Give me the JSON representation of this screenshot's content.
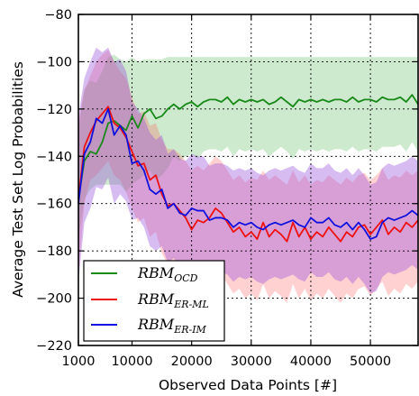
{
  "chart_data": {
    "type": "line",
    "title": "",
    "xlabel": "Observed Data Points [#]",
    "ylabel": "Average Test Set Log Probabilities",
    "xlim": [
      1000,
      58000
    ],
    "ylim": [
      -220,
      -80
    ],
    "xticks": [
      1000,
      10000,
      20000,
      30000,
      40000,
      50000
    ],
    "yticks": [
      -80,
      -100,
      -120,
      -140,
      -160,
      -180,
      -200,
      -220
    ],
    "grid": true,
    "legend_position": "lower-left",
    "x": [
      1000,
      2000,
      3000,
      4000,
      5000,
      6000,
      7000,
      8000,
      9000,
      10000,
      11000,
      12000,
      13000,
      14000,
      15000,
      16000,
      17000,
      18000,
      19000,
      20000,
      21000,
      22000,
      23000,
      24000,
      25000,
      26000,
      27000,
      28000,
      29000,
      30000,
      31000,
      32000,
      33000,
      34000,
      35000,
      36000,
      37000,
      38000,
      39000,
      40000,
      41000,
      42000,
      43000,
      44000,
      45000,
      46000,
      47000,
      48000,
      49000,
      50000,
      51000,
      52000,
      53000,
      54000,
      55000,
      56000,
      57000,
      58000
    ],
    "series": [
      {
        "name": "OCD",
        "color": "#1a8a1a",
        "band_color": "rgba(60,170,60,0.25)",
        "values": [
          -158,
          -142,
          -138,
          -139,
          -134,
          -126,
          -125,
          -127,
          -129,
          -123,
          -128,
          -122,
          -120,
          -124,
          -123,
          -120,
          -118,
          -120,
          -118,
          -117,
          -119,
          -117,
          -116,
          -116,
          -117,
          -115,
          -118,
          -116,
          -117,
          -116,
          -117,
          -116,
          -118,
          -117,
          -115,
          -117,
          -119,
          -116,
          -117,
          -116,
          -117,
          -116,
          -117,
          -116,
          -116,
          -117,
          -115,
          -117,
          -116,
          -116,
          -117,
          -115,
          -116,
          -116,
          -115,
          -117,
          -114,
          -118
        ],
        "upper": [
          -128,
          -112,
          -108,
          -109,
          -104,
          -98,
          -97,
          -99,
          -100,
          -98,
          -100,
          -99,
          -99,
          -99,
          -99,
          -98,
          -98,
          -98,
          -98,
          -98,
          -98,
          -98,
          -98,
          -98,
          -98,
          -98,
          -98,
          -98,
          -98,
          -98,
          -98,
          -98,
          -98,
          -98,
          -98,
          -98,
          -98,
          -98,
          -98,
          -98,
          -98,
          -98,
          -98,
          -98,
          -98,
          -98,
          -98,
          -98,
          -98,
          -98,
          -98,
          -98,
          -98,
          -98,
          -98,
          -98,
          -98,
          -98
        ],
        "lower": [
          -175,
          -158,
          -154,
          -152,
          -152,
          -152,
          -152,
          -152,
          -155,
          -152,
          -150,
          -148,
          -146,
          -150,
          -148,
          -145,
          -140,
          -142,
          -140,
          -139,
          -141,
          -138,
          -137,
          -137,
          -138,
          -136,
          -140,
          -137,
          -138,
          -137,
          -138,
          -137,
          -140,
          -138,
          -136,
          -138,
          -141,
          -137,
          -138,
          -137,
          -138,
          -137,
          -138,
          -137,
          -137,
          -138,
          -136,
          -138,
          -137,
          -137,
          -138,
          -136,
          -136,
          -136,
          -135,
          -138,
          -134,
          -138
        ]
      },
      {
        "name": "ER-ML",
        "color": "#ee1111",
        "band_color": "rgba(255,90,90,0.28)",
        "values": [
          -158,
          -136,
          -130,
          -125,
          -122,
          -119,
          -126,
          -128,
          -132,
          -138,
          -144,
          -143,
          -150,
          -148,
          -156,
          -161,
          -160,
          -163,
          -166,
          -171,
          -167,
          -168,
          -166,
          -162,
          -164,
          -168,
          -172,
          -170,
          -174,
          -172,
          -175,
          -168,
          -174,
          -171,
          -173,
          -176,
          -168,
          -174,
          -170,
          -175,
          -172,
          -174,
          -170,
          -173,
          -176,
          -172,
          -174,
          -170,
          -169,
          -173,
          -170,
          -167,
          -173,
          -170,
          -172,
          -168,
          -170,
          -167
        ],
        "upper": [
          -125,
          -112,
          -106,
          -100,
          -97,
          -95,
          -100,
          -104,
          -107,
          -115,
          -122,
          -121,
          -127,
          -126,
          -133,
          -137,
          -137,
          -139,
          -142,
          -146,
          -144,
          -146,
          -143,
          -140,
          -142,
          -146,
          -150,
          -148,
          -151,
          -149,
          -150,
          -146,
          -150,
          -148,
          -150,
          -152,
          -146,
          -151,
          -148,
          -152,
          -150,
          -151,
          -148,
          -150,
          -152,
          -149,
          -151,
          -148,
          -147,
          -150,
          -148,
          -145,
          -150,
          -148,
          -149,
          -146,
          -148,
          -146
        ],
        "lower": [
          -190,
          -160,
          -150,
          -148,
          -145,
          -142,
          -148,
          -150,
          -155,
          -162,
          -168,
          -166,
          -174,
          -172,
          -181,
          -186,
          -186,
          -189,
          -192,
          -196,
          -192,
          -194,
          -192,
          -188,
          -190,
          -194,
          -198,
          -196,
          -200,
          -198,
          -201,
          -194,
          -200,
          -197,
          -199,
          -202,
          -194,
          -200,
          -196,
          -201,
          -198,
          -200,
          -196,
          -199,
          -202,
          -198,
          -200,
          -196,
          -195,
          -199,
          -196,
          -193,
          -199,
          -196,
          -198,
          -194,
          -196,
          -193
        ]
      },
      {
        "name": "ER-IM",
        "color": "#1111dd",
        "band_color": "rgba(150,80,220,0.38)",
        "values": [
          -160,
          -139,
          -134,
          -124,
          -126,
          -120,
          -131,
          -127,
          -131,
          -143,
          -142,
          -146,
          -154,
          -156,
          -154,
          -162,
          -160,
          -164,
          -165,
          -162,
          -163,
          -163,
          -167,
          -166,
          -166,
          -167,
          -170,
          -168,
          -169,
          -168,
          -170,
          -171,
          -169,
          -168,
          -169,
          -168,
          -167,
          -169,
          -170,
          -166,
          -168,
          -168,
          -166,
          -169,
          -170,
          -168,
          -171,
          -168,
          -171,
          -175,
          -174,
          -168,
          -166,
          -167,
          -166,
          -165,
          -163,
          -165
        ],
        "upper": [
          -123,
          -107,
          -100,
          -94,
          -96,
          -94,
          -100,
          -99,
          -104,
          -117,
          -120,
          -124,
          -130,
          -133,
          -131,
          -139,
          -137,
          -141,
          -142,
          -139,
          -140,
          -140,
          -144,
          -143,
          -143,
          -144,
          -146,
          -145,
          -146,
          -145,
          -147,
          -148,
          -146,
          -145,
          -146,
          -145,
          -144,
          -146,
          -147,
          -143,
          -145,
          -145,
          -143,
          -146,
          -147,
          -145,
          -148,
          -145,
          -148,
          -152,
          -151,
          -145,
          -143,
          -144,
          -143,
          -142,
          -140,
          -142
        ],
        "lower": [
          -193,
          -168,
          -162,
          -153,
          -154,
          -149,
          -160,
          -156,
          -159,
          -167,
          -166,
          -170,
          -178,
          -180,
          -178,
          -185,
          -183,
          -187,
          -188,
          -185,
          -186,
          -186,
          -190,
          -189,
          -189,
          -190,
          -193,
          -191,
          -192,
          -191,
          -193,
          -194,
          -192,
          -191,
          -192,
          -191,
          -190,
          -192,
          -193,
          -189,
          -191,
          -191,
          -189,
          -192,
          -193,
          -191,
          -194,
          -191,
          -194,
          -198,
          -197,
          -191,
          -189,
          -190,
          -189,
          -188,
          -186,
          -188
        ]
      }
    ]
  }
}
